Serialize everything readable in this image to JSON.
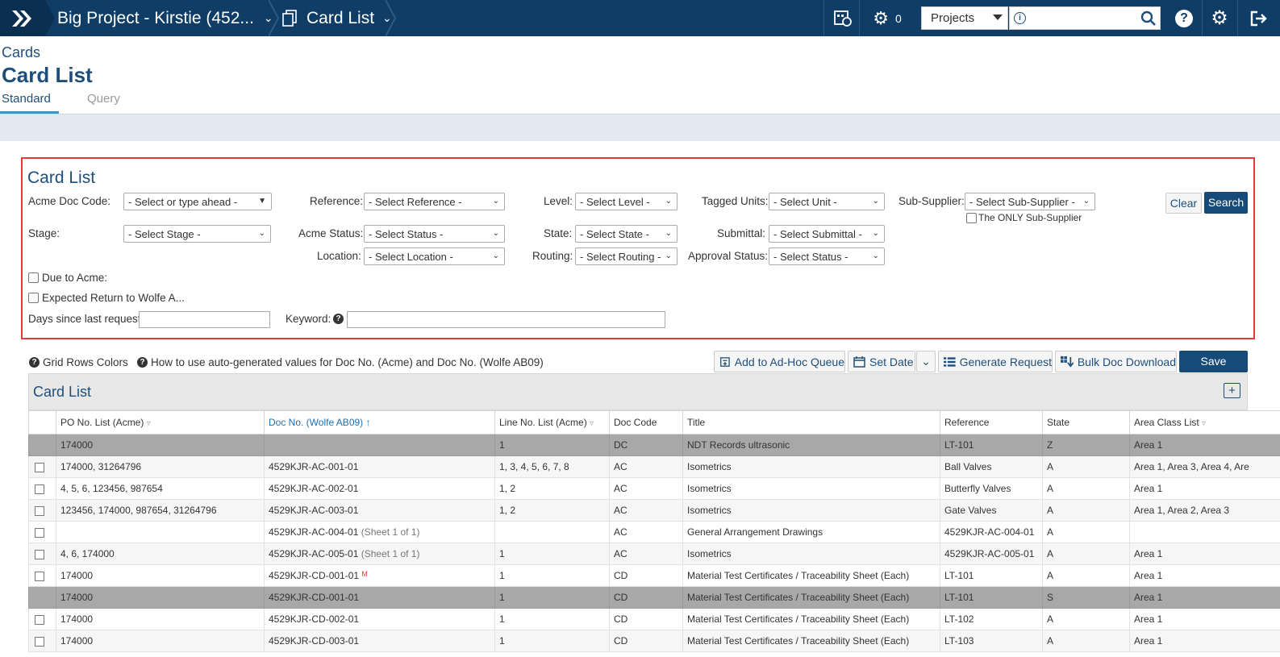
{
  "topbar": {
    "project": "Big Project - Kirstie (452...",
    "module": "Card List",
    "gear_count": "0",
    "search_scope": "Projects",
    "search_value": ""
  },
  "header": {
    "breadcrumb": "Cards",
    "title": "Card List",
    "tabs": [
      "Standard",
      "Query"
    ]
  },
  "filters": {
    "title": "Card List",
    "acme_doc_code": {
      "label": "Acme Doc Code:",
      "value": "- Select or type ahead -"
    },
    "stage": {
      "label": "Stage:",
      "value": "- Select Stage -"
    },
    "reference": {
      "label": "Reference:",
      "value": "- Select Reference -"
    },
    "acme_status": {
      "label": "Acme Status:",
      "value": "- Select Status -"
    },
    "location": {
      "label": "Location:",
      "value": "- Select Location -"
    },
    "level": {
      "label": "Level:",
      "value": "- Select Level -"
    },
    "state": {
      "label": "State:",
      "value": "- Select State -"
    },
    "routing": {
      "label": "Routing:",
      "value": "- Select Routing -"
    },
    "tagged_units": {
      "label": "Tagged Units:",
      "value": "- Select Unit -"
    },
    "submittal": {
      "label": "Submittal:",
      "value": "- Select Submittal -"
    },
    "approval_status": {
      "label": "Approval Status:",
      "value": "- Select Status -"
    },
    "sub_supplier": {
      "label": "Sub-Supplier:",
      "value": "- Select Sub-Supplier -"
    },
    "only_sub_supplier": "The ONLY Sub-Supplier",
    "due_to_acme": "Due to Acme:",
    "expected_return": "Expected Return to Wolfe A...",
    "days_since": "Days since last request:",
    "keyword": "Keyword:",
    "clear": "Clear",
    "search": "Search"
  },
  "toolbar": {
    "grid_rows_colors": "Grid Rows Colors",
    "how_to": "How to use auto-generated values for Doc No. (Acme) and Doc No. (Wolfe AB09)",
    "add_queue": "Add to Ad-Hoc Queue",
    "set_date": "Set Date",
    "generate_request": "Generate Request",
    "bulk_download": "Bulk Doc Download",
    "save": "Save"
  },
  "grid": {
    "title": "Card List",
    "columns": [
      "PO No. List (Acme)",
      "Doc No. (Wolfe AB09)",
      "Line No. List (Acme)",
      "Doc Code",
      "Title",
      "Reference",
      "State",
      "Area Class List"
    ],
    "rows": [
      {
        "dark": true,
        "cb": false,
        "po": "174000",
        "doc": "",
        "sheet": "",
        "m": "",
        "line": "1",
        "code": "DC",
        "title": "NDT Records ultrasonic",
        "ref": "LT-101",
        "state": "Z",
        "area": "Area 1"
      },
      {
        "dark": false,
        "cb": true,
        "po": "174000, 31264796",
        "doc": "4529KJR-AC-001-01",
        "sheet": "",
        "m": "",
        "line": "1, 3, 4, 5, 6, 7, 8",
        "code": "AC",
        "title": "Isometrics",
        "ref": "Ball Valves",
        "state": "A",
        "area": "Area 1, Area 3, Area 4, Are"
      },
      {
        "dark": false,
        "cb": true,
        "po": "4, 5, 6, 123456, 987654",
        "doc": "4529KJR-AC-002-01",
        "sheet": "",
        "m": "",
        "line": "1, 2",
        "code": "AC",
        "title": "Isometrics",
        "ref": "Butterfly Valves",
        "state": "A",
        "area": "Area 1"
      },
      {
        "dark": false,
        "cb": true,
        "po": "123456, 174000, 987654, 31264796",
        "doc": "4529KJR-AC-003-01",
        "sheet": "",
        "m": "",
        "line": "1, 2",
        "code": "AC",
        "title": "Isometrics",
        "ref": "Gate Valves",
        "state": "A",
        "area": "Area 1, Area 2, Area 3"
      },
      {
        "dark": false,
        "cb": true,
        "po": "",
        "doc": "4529KJR-AC-004-01",
        "sheet": "(Sheet 1 of 1)",
        "m": "",
        "line": "",
        "code": "AC",
        "title": "General Arrangement Drawings",
        "ref": "4529KJR-AC-004-01",
        "state": "A",
        "area": ""
      },
      {
        "dark": false,
        "cb": true,
        "po": "4, 6, 174000",
        "doc": "4529KJR-AC-005-01",
        "sheet": "(Sheet 1 of 1)",
        "m": "",
        "line": "1",
        "code": "AC",
        "title": "Isometrics",
        "ref": "4529KJR-AC-005-01",
        "state": "A",
        "area": "Area 1"
      },
      {
        "dark": false,
        "cb": true,
        "po": "174000",
        "doc": "4529KJR-CD-001-01",
        "sheet": "",
        "m": "M",
        "line": "1",
        "code": "CD",
        "title": "Material Test Certificates / Traceability Sheet (Each)",
        "ref": "LT-101",
        "state": "A",
        "area": "Area 1"
      },
      {
        "dark": true,
        "cb": false,
        "po": "174000",
        "doc": "4529KJR-CD-001-01",
        "sheet": "",
        "m": "",
        "line": "1",
        "code": "CD",
        "title": "Material Test Certificates / Traceability Sheet (Each)",
        "ref": "LT-101",
        "state": "S",
        "area": "Area 1"
      },
      {
        "dark": false,
        "cb": true,
        "po": "174000",
        "doc": "4529KJR-CD-002-01",
        "sheet": "",
        "m": "",
        "line": "1",
        "code": "CD",
        "title": "Material Test Certificates / Traceability Sheet (Each)",
        "ref": "LT-102",
        "state": "A",
        "area": "Area 1"
      },
      {
        "dark": false,
        "cb": true,
        "po": "174000",
        "doc": "4529KJR-CD-003-01",
        "sheet": "",
        "m": "",
        "line": "1",
        "code": "CD",
        "title": "Material Test Certificates / Traceability Sheet (Each)",
        "ref": "LT-103",
        "state": "A",
        "area": "Area 1"
      }
    ]
  }
}
